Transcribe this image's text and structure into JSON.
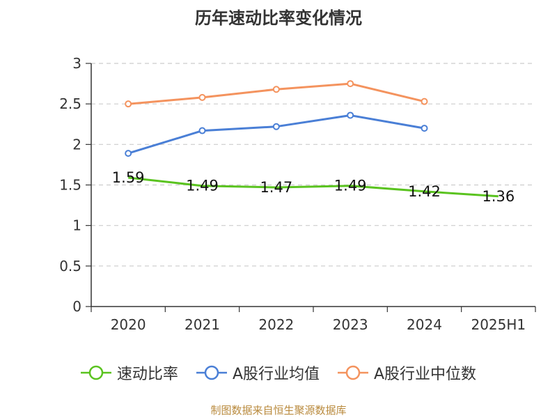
{
  "chart_data": {
    "type": "line",
    "title": "历年速动比率变化情况",
    "categories": [
      "2020",
      "2021",
      "2022",
      "2023",
      "2024",
      "2025H1"
    ],
    "ylim": [
      0,
      3
    ],
    "yticks": [
      "0",
      "0.5",
      "1",
      "1.5",
      "2",
      "2.5",
      "3"
    ],
    "grid": true,
    "legend_position": "bottom",
    "series": [
      {
        "name": "速动比率",
        "color": "#5ac31f",
        "values": [
          1.59,
          1.49,
          1.47,
          1.49,
          1.42,
          1.36
        ],
        "labels": [
          "1.59",
          "1.49",
          "1.47",
          "1.49",
          "1.42",
          "1.36"
        ]
      },
      {
        "name": "A股行业均值",
        "color": "#4a7fd6",
        "values": [
          1.89,
          2.17,
          2.22,
          2.36,
          2.2,
          null
        ]
      },
      {
        "name": "A股行业中位数",
        "color": "#f4935e",
        "values": [
          2.5,
          2.58,
          2.68,
          2.75,
          2.53,
          null
        ]
      }
    ]
  },
  "source": "制图数据来自恒生聚源数据库"
}
